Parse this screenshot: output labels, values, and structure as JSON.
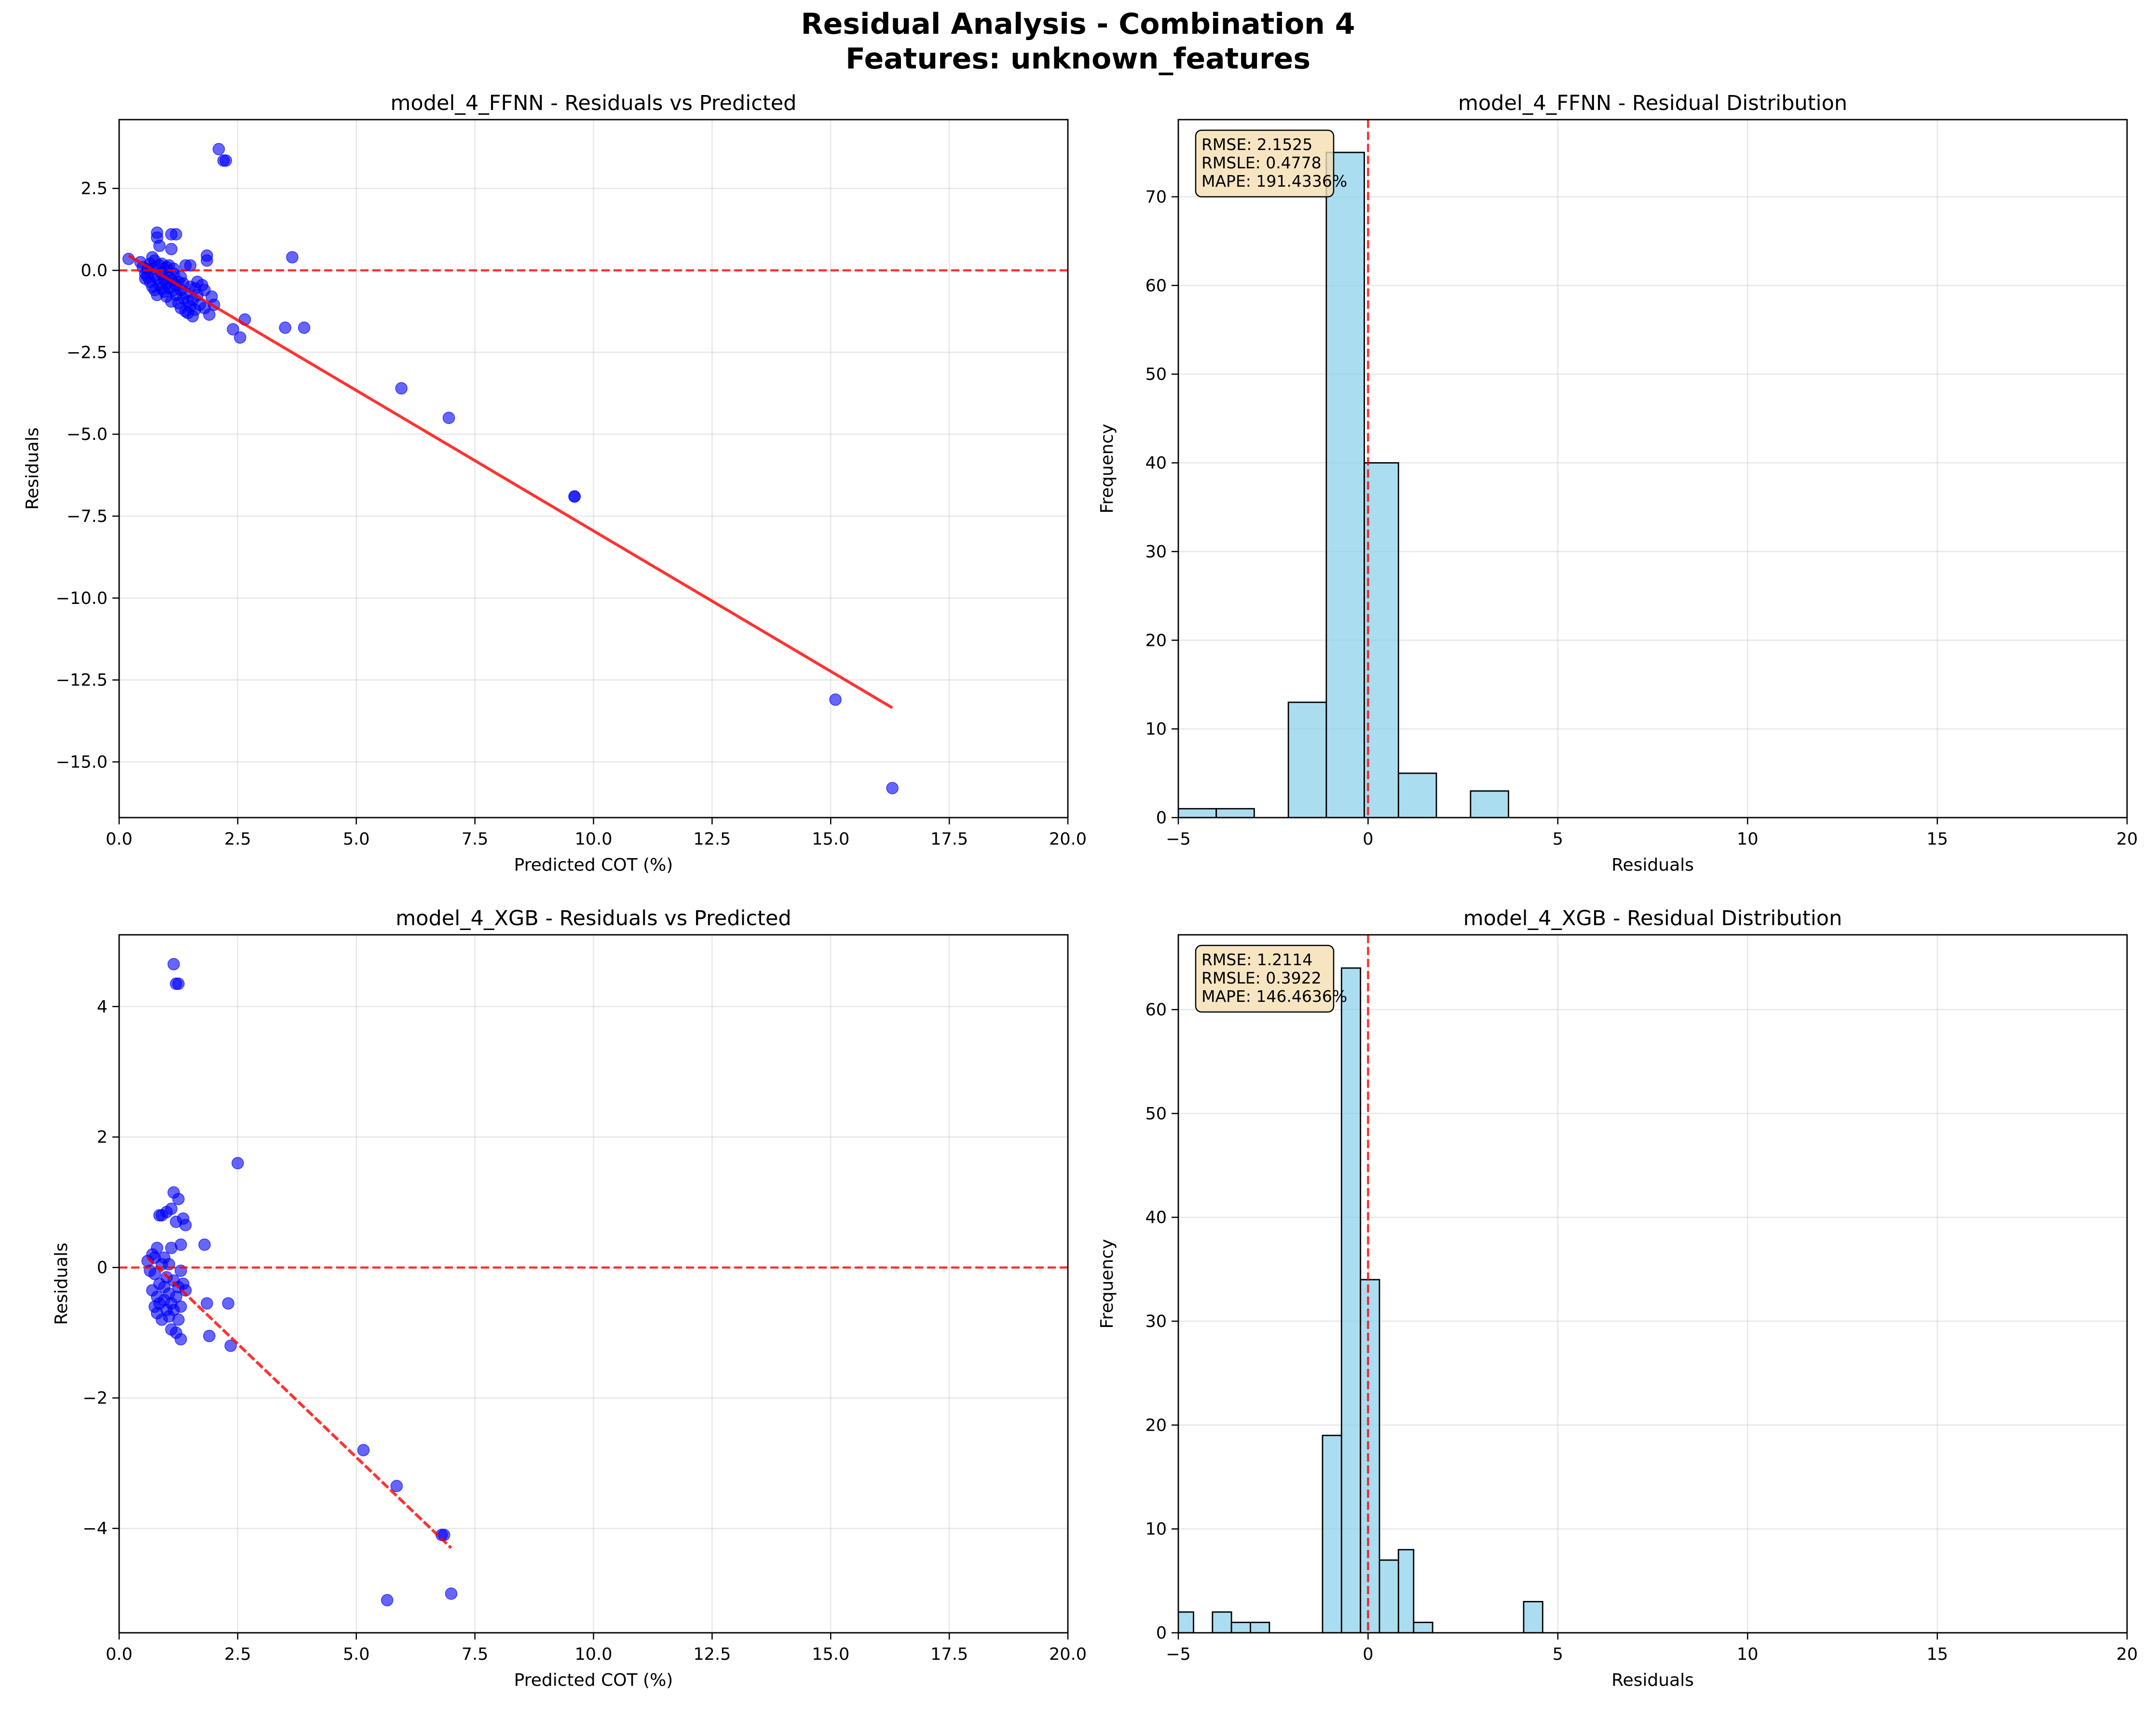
{
  "figure": {
    "title_line1": "Residual Analysis - Combination 4",
    "title_line2": "Features: unknown_features"
  },
  "colors": {
    "points": "#0000ff",
    "trend": "#ff0000",
    "zero_line": "#ff0000",
    "hist_fill": "#87ceeb",
    "hist_edge": "#000000",
    "stats_box_fill": "#f5deb3",
    "grid": "#b0b0b0"
  },
  "chart_data": [
    {
      "id": "ffnn-scatter",
      "type": "scatter",
      "title": "model_4_FFNN - Residuals vs Predicted",
      "xlabel": "Predicted COT (%)",
      "ylabel": "Residuals",
      "xlim": [
        0,
        20
      ],
      "ylim": [
        -16.7,
        4.6
      ],
      "xticks": [
        0,
        2.5,
        5,
        7.5,
        10,
        12.5,
        15,
        17.5,
        20
      ],
      "xtick_labels": [
        "0.0",
        "2.5",
        "5.0",
        "7.5",
        "10.0",
        "12.5",
        "15.0",
        "17.5",
        "20.0"
      ],
      "yticks": [
        2.5,
        0,
        -2.5,
        -5,
        -7.5,
        -10,
        -12.5,
        -15
      ],
      "ytick_labels": [
        "2.5",
        "0.0",
        "−2.5",
        "−5.0",
        "−7.5",
        "−10.0",
        "−12.5",
        "−15.0"
      ],
      "grid": true,
      "zero_line": 0,
      "trend_line": {
        "x": [
          0.2,
          16.3
        ],
        "y": [
          0.45,
          -13.35
        ]
      },
      "points": [
        [
          0.2,
          0.35
        ],
        [
          0.45,
          0.25
        ],
        [
          0.5,
          0.1
        ],
        [
          0.55,
          -0.1
        ],
        [
          0.55,
          -0.25
        ],
        [
          0.6,
          0.05
        ],
        [
          0.6,
          -0.2
        ],
        [
          0.65,
          -0.35
        ],
        [
          0.65,
          0.2
        ],
        [
          0.7,
          -0.5
        ],
        [
          0.7,
          0.4
        ],
        [
          0.7,
          0.05
        ],
        [
          0.75,
          -0.6
        ],
        [
          0.75,
          -0.15
        ],
        [
          0.75,
          0.3
        ],
        [
          0.8,
          -0.25
        ],
        [
          0.8,
          -0.75
        ],
        [
          0.8,
          1.15
        ],
        [
          0.8,
          1.0
        ],
        [
          0.85,
          0.15
        ],
        [
          0.85,
          -0.45
        ],
        [
          0.85,
          0.75
        ],
        [
          0.9,
          -0.1
        ],
        [
          0.9,
          -0.55
        ],
        [
          0.9,
          0.2
        ],
        [
          0.95,
          -0.65
        ],
        [
          0.95,
          0.05
        ],
        [
          0.95,
          -0.3
        ],
        [
          1.0,
          -0.4
        ],
        [
          1.0,
          0.1
        ],
        [
          1.0,
          -0.8
        ],
        [
          1.05,
          -0.2
        ],
        [
          1.05,
          -0.55
        ],
        [
          1.05,
          0.15
        ],
        [
          1.1,
          -0.95
        ],
        [
          1.1,
          -0.3
        ],
        [
          1.1,
          0.65
        ],
        [
          1.1,
          1.1
        ],
        [
          1.15,
          -0.6
        ],
        [
          1.15,
          -0.1
        ],
        [
          1.15,
          0.05
        ],
        [
          1.2,
          -0.45
        ],
        [
          1.2,
          1.1
        ],
        [
          1.2,
          -0.75
        ],
        [
          1.25,
          -0.35
        ],
        [
          1.25,
          -1.0
        ],
        [
          1.3,
          -0.6
        ],
        [
          1.3,
          -0.2
        ],
        [
          1.3,
          -1.15
        ],
        [
          1.35,
          -0.85
        ],
        [
          1.35,
          -0.4
        ],
        [
          1.4,
          -1.25
        ],
        [
          1.4,
          -0.7
        ],
        [
          1.4,
          0.15
        ],
        [
          1.45,
          -0.95
        ],
        [
          1.45,
          -1.3
        ],
        [
          1.5,
          -0.5
        ],
        [
          1.5,
          -1.1
        ],
        [
          1.5,
          0.15
        ],
        [
          1.55,
          -1.4
        ],
        [
          1.55,
          -0.9
        ],
        [
          1.6,
          -1.2
        ],
        [
          1.6,
          -0.55
        ],
        [
          1.65,
          -0.75
        ],
        [
          1.65,
          -0.35
        ],
        [
          1.7,
          -1.05
        ],
        [
          1.75,
          -0.45
        ],
        [
          1.8,
          -0.6
        ],
        [
          1.8,
          -1.15
        ],
        [
          1.85,
          0.3
        ],
        [
          1.85,
          0.45
        ],
        [
          1.9,
          -1.35
        ],
        [
          1.95,
          -0.8
        ],
        [
          2.0,
          -1.05
        ],
        [
          2.1,
          3.7
        ],
        [
          2.2,
          3.35
        ],
        [
          2.25,
          3.35
        ],
        [
          2.4,
          -1.8
        ],
        [
          2.55,
          -2.05
        ],
        [
          2.65,
          -1.5
        ],
        [
          3.5,
          -1.75
        ],
        [
          3.65,
          0.4
        ],
        [
          3.9,
          -1.75
        ],
        [
          5.95,
          -3.6
        ],
        [
          6.95,
          -4.5
        ],
        [
          9.6,
          -6.9
        ],
        [
          9.6,
          -6.9
        ],
        [
          15.1,
          -13.1
        ],
        [
          16.3,
          -15.8
        ]
      ]
    },
    {
      "id": "ffnn-hist",
      "type": "bar",
      "title": "model_4_FFNN - Residual Distribution",
      "xlabel": "Residuals",
      "ylabel": "Frequency",
      "xlim": [
        -5,
        20
      ],
      "ylim": [
        0,
        78.7
      ],
      "xticks": [
        -5,
        0,
        5,
        10,
        15,
        20
      ],
      "xtick_labels": [
        "−5",
        "0",
        "5",
        "10",
        "15",
        "20"
      ],
      "yticks": [
        0,
        10,
        20,
        30,
        40,
        50,
        60,
        70
      ],
      "ytick_labels": [
        "0",
        "10",
        "20",
        "30",
        "40",
        "50",
        "60",
        "70"
      ],
      "grid": true,
      "zero_line": 0,
      "bins": [
        {
          "x0": -5.0,
          "x1": -4.0,
          "count": 1
        },
        {
          "x0": -4.0,
          "x1": -3.0,
          "count": 1
        },
        {
          "x0": -2.1,
          "x1": -1.1,
          "count": 13
        },
        {
          "x0": -1.1,
          "x1": -0.1,
          "count": 75
        },
        {
          "x0": -0.1,
          "x1": 0.8,
          "count": 40
        },
        {
          "x0": 0.8,
          "x1": 1.8,
          "count": 5
        },
        {
          "x0": 2.7,
          "x1": 3.7,
          "count": 3
        }
      ],
      "stats": [
        "RMSE: 2.1525",
        "RMSLE: 0.4778",
        "MAPE: 191.4336%"
      ]
    },
    {
      "id": "xgb-scatter",
      "type": "scatter",
      "title": "model_4_XGB - Residuals vs Predicted",
      "xlabel": "Predicted COT (%)",
      "ylabel": "Residuals",
      "xlim": [
        0,
        20
      ],
      "ylim": [
        -5.6,
        5.1
      ],
      "xticks": [
        0,
        2.5,
        5,
        7.5,
        10,
        12.5,
        15,
        17.5,
        20
      ],
      "xtick_labels": [
        "0.0",
        "2.5",
        "5.0",
        "7.5",
        "10.0",
        "12.5",
        "15.0",
        "17.5",
        "20.0"
      ],
      "yticks": [
        4,
        2,
        0,
        -2,
        -4
      ],
      "ytick_labels": [
        "4",
        "2",
        "0",
        "−2",
        "−4"
      ],
      "grid": true,
      "zero_line": 0,
      "trend_line": {
        "x": [
          0.6,
          7.0
        ],
        "y": [
          0.15,
          -4.3
        ]
      },
      "points": [
        [
          0.6,
          0.1
        ],
        [
          0.65,
          -0.05
        ],
        [
          0.7,
          0.2
        ],
        [
          0.7,
          -0.35
        ],
        [
          0.75,
          -0.6
        ],
        [
          0.75,
          0.15
        ],
        [
          0.75,
          -0.1
        ],
        [
          0.8,
          -0.45
        ],
        [
          0.8,
          0.3
        ],
        [
          0.8,
          -0.7
        ],
        [
          0.85,
          -0.25
        ],
        [
          0.85,
          0.8
        ],
        [
          0.85,
          -0.55
        ],
        [
          0.9,
          0.05
        ],
        [
          0.9,
          -0.8
        ],
        [
          0.9,
          0.8
        ],
        [
          0.95,
          -0.3
        ],
        [
          0.95,
          -0.5
        ],
        [
          0.95,
          0.15
        ],
        [
          1.0,
          -0.65
        ],
        [
          1.0,
          -0.15
        ],
        [
          1.0,
          0.85
        ],
        [
          1.05,
          -0.4
        ],
        [
          1.05,
          -0.75
        ],
        [
          1.05,
          0.05
        ],
        [
          1.1,
          -0.55
        ],
        [
          1.1,
          -0.95
        ],
        [
          1.1,
          0.3
        ],
        [
          1.1,
          0.9
        ],
        [
          1.15,
          -0.2
        ],
        [
          1.15,
          -0.65
        ],
        [
          1.15,
          4.65
        ],
        [
          1.15,
          1.15
        ],
        [
          1.2,
          0.7
        ],
        [
          1.2,
          -0.45
        ],
        [
          1.2,
          -1.0
        ],
        [
          1.2,
          4.35
        ],
        [
          1.25,
          4.35
        ],
        [
          1.25,
          -0.3
        ],
        [
          1.25,
          1.05
        ],
        [
          1.25,
          -0.8
        ],
        [
          1.3,
          0.35
        ],
        [
          1.3,
          -0.6
        ],
        [
          1.3,
          -0.05
        ],
        [
          1.3,
          -1.1
        ],
        [
          1.35,
          0.75
        ],
        [
          1.35,
          -0.25
        ],
        [
          1.4,
          0.65
        ],
        [
          1.4,
          -0.35
        ],
        [
          1.8,
          0.35
        ],
        [
          1.85,
          -0.55
        ],
        [
          1.9,
          -1.05
        ],
        [
          2.3,
          -0.55
        ],
        [
          2.35,
          -1.2
        ],
        [
          2.5,
          1.6
        ],
        [
          5.15,
          -2.8
        ],
        [
          5.65,
          -5.1
        ],
        [
          5.85,
          -3.35
        ],
        [
          6.8,
          -4.1
        ],
        [
          6.85,
          -4.1
        ],
        [
          7.0,
          -5.0
        ]
      ]
    },
    {
      "id": "xgb-hist",
      "type": "bar",
      "title": "model_4_XGB - Residual Distribution",
      "xlabel": "Residuals",
      "ylabel": "Frequency",
      "xlim": [
        -5,
        20
      ],
      "ylim": [
        0,
        67.2
      ],
      "xticks": [
        -5,
        0,
        5,
        10,
        15,
        20
      ],
      "xtick_labels": [
        "−5",
        "0",
        "5",
        "10",
        "15",
        "20"
      ],
      "yticks": [
        0,
        10,
        20,
        30,
        40,
        50,
        60
      ],
      "ytick_labels": [
        "0",
        "10",
        "20",
        "30",
        "40",
        "50",
        "60"
      ],
      "grid": true,
      "zero_line": 0,
      "bins": [
        {
          "x0": -5.1,
          "x1": -4.6,
          "count": 2
        },
        {
          "x0": -4.1,
          "x1": -3.6,
          "count": 2
        },
        {
          "x0": -3.6,
          "x1": -3.1,
          "count": 1
        },
        {
          "x0": -3.1,
          "x1": -2.6,
          "count": 1
        },
        {
          "x0": -1.2,
          "x1": -0.7,
          "count": 19
        },
        {
          "x0": -0.7,
          "x1": -0.2,
          "count": 64
        },
        {
          "x0": -0.2,
          "x1": 0.3,
          "count": 34
        },
        {
          "x0": 0.3,
          "x1": 0.8,
          "count": 7
        },
        {
          "x0": 0.8,
          "x1": 1.2,
          "count": 8
        },
        {
          "x0": 1.2,
          "x1": 1.7,
          "count": 1
        },
        {
          "x0": 4.1,
          "x1": 4.6,
          "count": 3
        }
      ],
      "stats": [
        "RMSE: 1.2114",
        "RMSLE: 0.3922",
        "MAPE: 146.4636%"
      ]
    }
  ]
}
